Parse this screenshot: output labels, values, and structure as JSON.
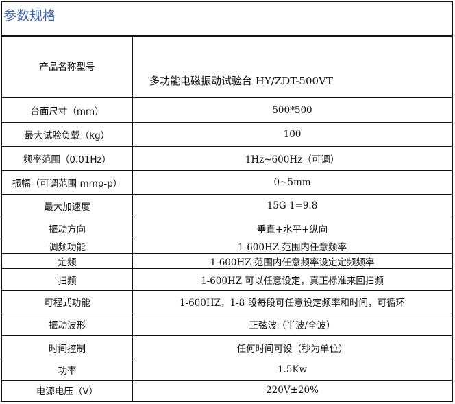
{
  "title": "参数规格",
  "rows": [
    {
      "label": "产品名称型号",
      "value": "多功能电磁振动试验台 HY/ZDT-500VT"
    },
    {
      "label": "台面尺寸（mm）",
      "value": "500*500"
    },
    {
      "label": "最大试验负载（kg）",
      "value": "100"
    },
    {
      "label": "频率范围（0.01Hz）",
      "value": "1Hz~600Hz（可调）"
    },
    {
      "label": "振幅（可调范围 mmp-p）",
      "value": "0~5mm"
    },
    {
      "label": "最大加速度",
      "value": "15G    1=9.8"
    },
    {
      "label": "振动方向",
      "value": "垂直+水平+纵向"
    },
    {
      "label": "调频功能",
      "value": "1-600HZ 范围内任意频率"
    },
    {
      "label": "定频",
      "value": "1-600HZ 范围内任意频率设定定频频率"
    },
    {
      "label": "扫频",
      "value": "1-600HZ 可以任意设定，真正标准来回扫频"
    },
    {
      "label": "可程式功能",
      "value": "1-600HZ，1-8 段每段可任意设定频率和时间，可循环"
    },
    {
      "label": "振动波形",
      "value": "正弦波（半波/全波）"
    },
    {
      "label": "时间控制",
      "value": "任何时间可设（秒为单位）"
    },
    {
      "label": "功率",
      "value": "1.5Kw"
    },
    {
      "label": "电源电压（V）",
      "value": "220V±20%"
    }
  ]
}
